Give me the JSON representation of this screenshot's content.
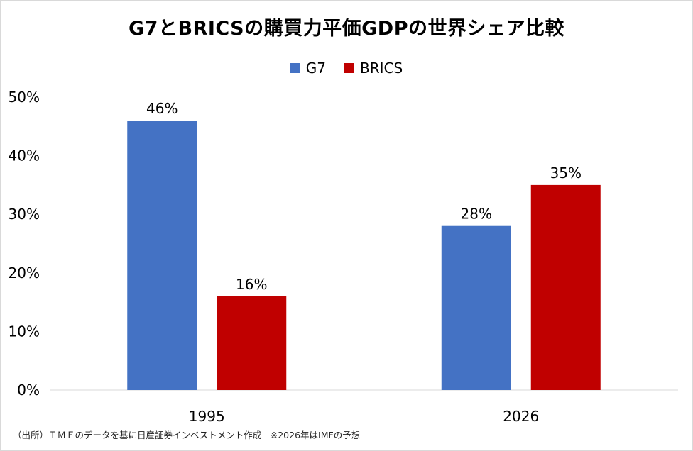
{
  "chart_data": {
    "type": "bar",
    "title": "G7とBRICSの購買力平価GDPの世界シェア比較",
    "categories": [
      "1995",
      "2026"
    ],
    "series": [
      {
        "name": "G7",
        "values": [
          46,
          28
        ],
        "labels": [
          "46%",
          "28%"
        ],
        "color": "#4472C4"
      },
      {
        "name": "BRICS",
        "values": [
          16,
          35
        ],
        "labels": [
          "16%",
          "35%"
        ],
        "color": "#C00000"
      }
    ],
    "ylim": [
      0,
      50
    ],
    "yticks": [
      "0%",
      "10%",
      "20%",
      "30%",
      "40%",
      "50%"
    ],
    "grid": false,
    "legend": "top-center",
    "xlabel": "",
    "ylabel": ""
  },
  "source_note": "（出所）ＩＭＦのデータを基に日産証券インベストメント作成　※2026年はIMFの予想"
}
